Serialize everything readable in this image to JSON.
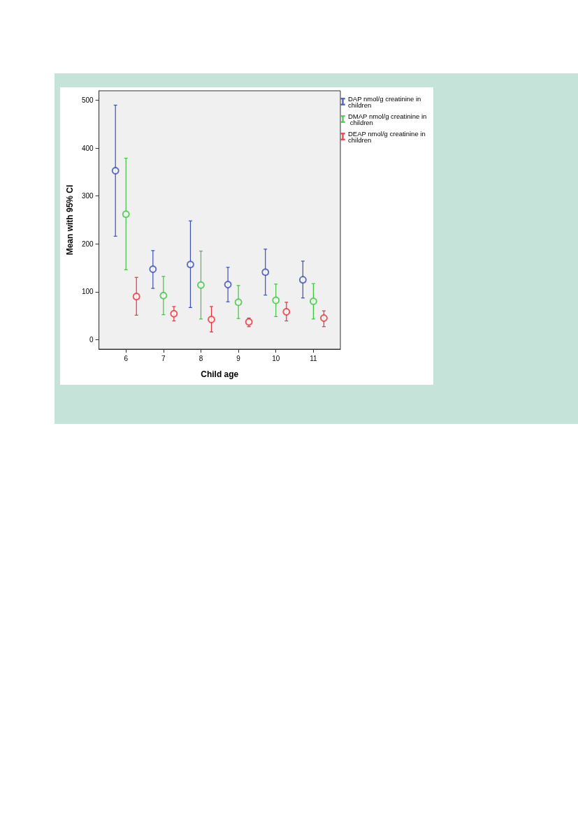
{
  "chart_data": {
    "type": "scatter",
    "xlabel": "Child age",
    "ylabel": "Mean with 95% CI",
    "categories": [
      "6",
      "7",
      "8",
      "9",
      "10",
      "11"
    ],
    "series": [
      {
        "name": "DAP nmol/g creatinine in children",
        "color": "#3c4fb5",
        "values": [
          353,
          147,
          157,
          115,
          141,
          125
        ],
        "errors": [
          [
            216,
            490
          ],
          [
            107,
            186
          ],
          [
            67,
            248
          ],
          [
            79,
            151
          ],
          [
            93,
            189
          ],
          [
            87,
            164
          ]
        ]
      },
      {
        "name": "DMAP nmol/g creatinine in children",
        "color": "#3ec43e",
        "values": [
          262,
          92,
          114,
          78,
          82,
          80
        ],
        "errors": [
          [
            146,
            379
          ],
          [
            52,
            132
          ],
          [
            43,
            185
          ],
          [
            44,
            113
          ],
          [
            48,
            116
          ],
          [
            43,
            117
          ]
        ]
      },
      {
        "name": "DEAP nmol/g creatinine in children",
        "color": "#e8323a",
        "values": [
          90,
          54,
          42,
          37,
          58,
          45
        ],
        "errors": [
          [
            51,
            130
          ],
          [
            39,
            69
          ],
          [
            16,
            69
          ],
          [
            27,
            45
          ],
          [
            39,
            78
          ],
          [
            27,
            60
          ]
        ]
      }
    ],
    "ylim": [
      -20,
      520
    ],
    "yticks": [
      0,
      100,
      200,
      300,
      400,
      500
    ],
    "marker": "circle",
    "grid": false,
    "legend": "top right"
  }
}
